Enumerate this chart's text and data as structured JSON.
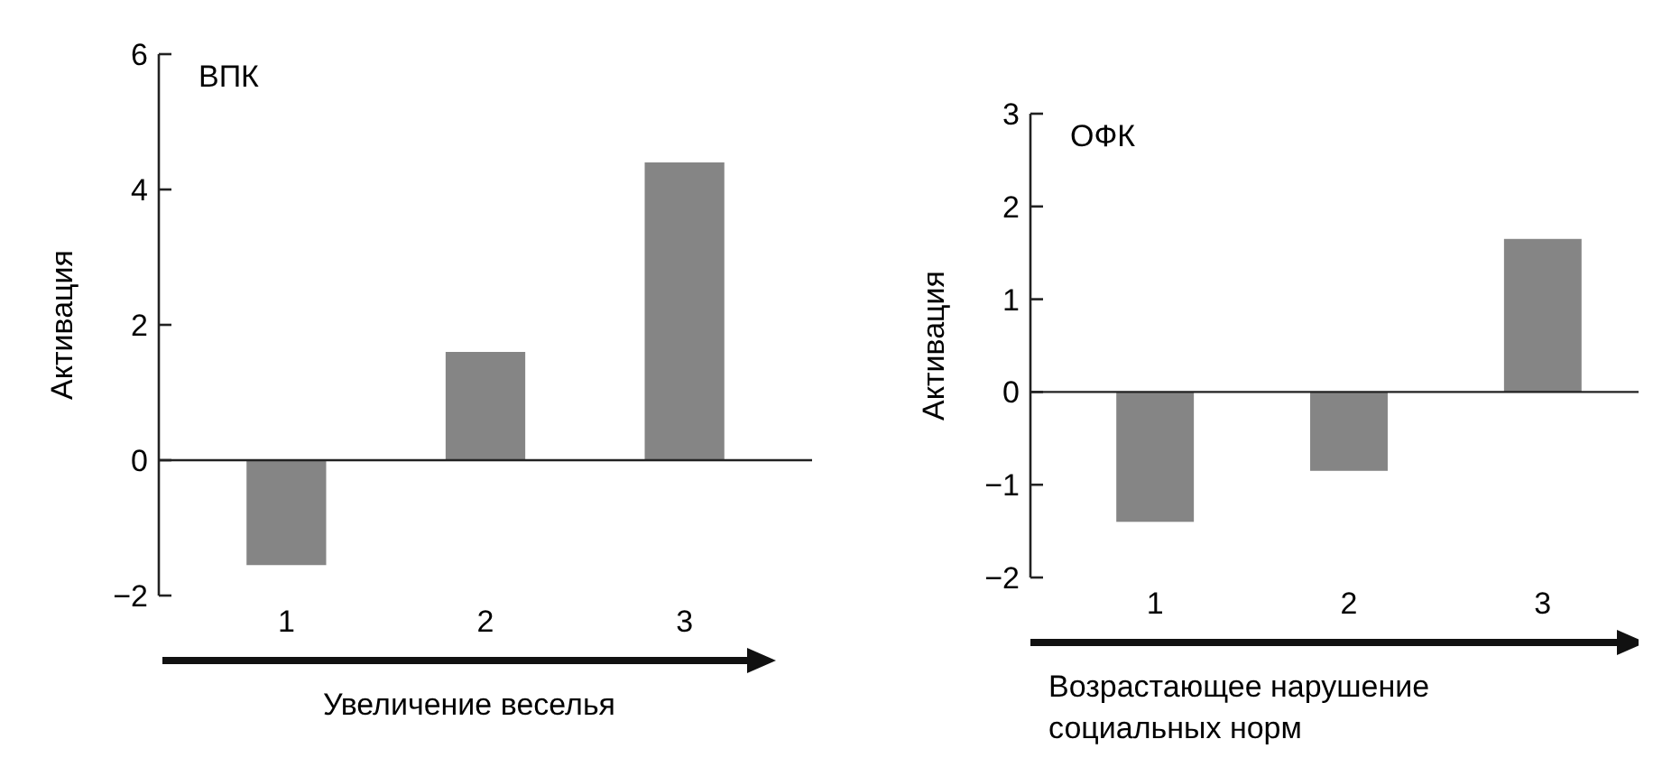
{
  "chart_data": [
    {
      "type": "bar",
      "title": "ВПК",
      "xlabel": "Увеличение веселья",
      "ylabel": "Активация",
      "categories": [
        "1",
        "2",
        "3"
      ],
      "values": [
        -1.55,
        1.6,
        4.4
      ],
      "color": "#858585",
      "ylim": [
        -2,
        6
      ],
      "yticks": [
        -2,
        0,
        2,
        4,
        6
      ]
    },
    {
      "type": "bar",
      "title": "ОФК",
      "xlabel": "Возрастающее нарушение социальных норм",
      "ylabel": "Активация",
      "categories": [
        "1",
        "2",
        "3"
      ],
      "values": [
        -1.4,
        -0.85,
        1.65
      ],
      "color": "#858585",
      "ylim": [
        -2,
        3
      ],
      "yticks": [
        -2,
        -1,
        0,
        1,
        2,
        3
      ]
    }
  ]
}
